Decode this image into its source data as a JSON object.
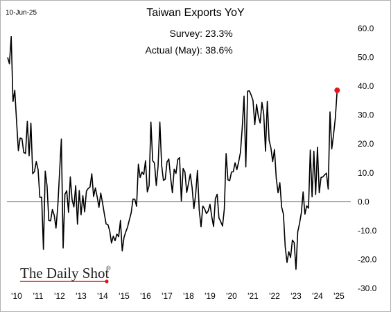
{
  "date_label": "10-Jun-25",
  "brand": {
    "text": "The Daily Shot",
    "mark": "®"
  },
  "colors": {
    "line": "#000000",
    "marker": "#e8141b",
    "zero_line": "#555555",
    "frame": "#b0b0b0"
  },
  "chart_data": {
    "type": "line",
    "title": "Taiwan Exports YoY",
    "annotations": [
      {
        "label": "Survey:",
        "value": "23.3%"
      },
      {
        "label": "Actual (May):",
        "value": "38.6%"
      }
    ],
    "xlabel": "",
    "ylabel": "",
    "ylim": [
      -30,
      60
    ],
    "y_ticks": [
      60,
      50,
      40,
      30,
      20,
      10,
      0,
      -10,
      -20,
      -30
    ],
    "y_tick_labels": [
      "60.0",
      "50.0",
      "40.0",
      "30.0",
      "20.0",
      "10.0",
      "0.0",
      "-10.0",
      "-20.0",
      "-30.0"
    ],
    "x_ticks": [
      "'10",
      "'11",
      "'12",
      "'13",
      "'14",
      "'15",
      "'16",
      "'17",
      "'18",
      "'19",
      "'20",
      "'21",
      "'22",
      "'23",
      "'24",
      "'25"
    ],
    "grid": false,
    "axis_position": "right",
    "zero_line": true,
    "highlight_last_point": true,
    "x_start": "2010-01",
    "frequency": "monthly",
    "values": [
      50.0,
      47.8,
      57.2,
      34.7,
      38.6,
      27.8,
      17.7,
      22.1,
      21.8,
      17.1,
      16.7,
      27.9,
      15.9,
      27.2,
      9.7,
      10.5,
      13.9,
      11.2,
      1.5,
      1.6,
      -16.5,
      10.6,
      5.6,
      -6.5,
      -6.6,
      -2.7,
      -4.6,
      -9.1,
      -1.7,
      10.1,
      21.7,
      -16.0,
      2.6,
      3.8,
      -3.7,
      8.6,
      0.7,
      -1.8,
      5.6,
      -7.8,
      3.9,
      -4.5,
      2.1,
      -3.5,
      3.7,
      4.6,
      5.1,
      9.7,
      1.8,
      4.8,
      1.7,
      -1.9,
      3.0,
      -0.4,
      -4.2,
      -7.7,
      -7.9,
      -10.1,
      -14.3,
      -11.9,
      -13.5,
      -11.2,
      -12.1,
      -6.5,
      -17.0,
      -12.3,
      -10.4,
      -8.7,
      -6.2,
      -3.8,
      0.9,
      0.9,
      -1.6,
      13.0,
      8.4,
      10.3,
      9.4,
      14.2,
      3.4,
      5.6,
      27.6,
      14.2,
      13.4,
      5.6,
      12.3,
      27.6,
      12.6,
      7.4,
      7.8,
      13.8,
      14.8,
      8.4,
      3.1,
      11.3,
      9.8,
      14.6,
      15.3,
      0.3,
      11.5,
      10.3,
      3.2,
      6.4,
      9.6,
      5.0,
      -2.4,
      2.6,
      10.8,
      -3.0,
      -8.7,
      -1.5,
      -2.5,
      -4.1,
      -3.2,
      -0.9,
      -5.2,
      -8.6,
      1.1,
      2.6,
      -5.6,
      -6.9,
      -8.4,
      -2.5,
      16.7,
      7.6,
      7.3,
      10.3,
      10.4,
      13.5,
      11.1,
      13.8,
      17.1,
      25.7,
      36.6,
      12.1,
      38.3,
      38.4,
      36.9,
      35.1,
      26.7,
      33.7,
      29.6,
      27.3,
      34.4,
      30.3,
      17.5,
      34.8,
      21.3,
      18.7,
      13.9,
      18.1,
      8.1,
      3.1,
      6.6,
      -1.8,
      -4.3,
      -15.6,
      -21.0,
      -17.3,
      -19.3,
      -13.3,
      -14.1,
      -23.4,
      -10.4,
      -7.5,
      -3.8,
      3.4,
      -4.3,
      -1.4,
      -2.2,
      17.9,
      1.7,
      17.5,
      2.5,
      18.9,
      3.1,
      8.4,
      8.6,
      9.3,
      9.9,
      4.4,
      31.1,
      18.3,
      23.3,
      29.1,
      38.6
    ]
  }
}
